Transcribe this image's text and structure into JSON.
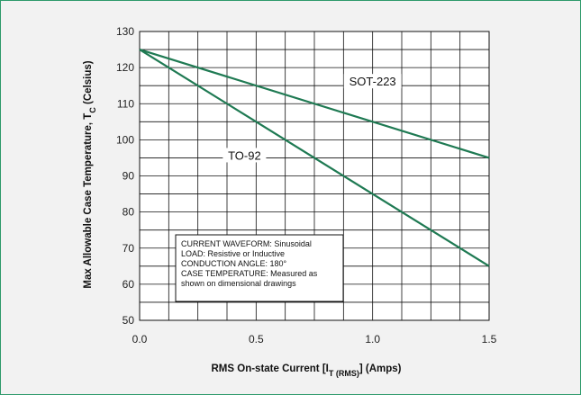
{
  "chart_data": {
    "type": "line",
    "xlabel": "RMS On-state Current [I",
    "xlabel_sub": "T (RMS)",
    "xlabel_tail": "] (Amps)",
    "ylabel": "Max Allowable Case Temperature, T",
    "ylabel_sub": "C",
    "ylabel_tail": " (Celsius)",
    "xlim": [
      0,
      1.5
    ],
    "ylim": [
      50,
      130
    ],
    "x_ticks": [
      "0.0",
      "0.5",
      "1.0",
      "1.5"
    ],
    "y_ticks": [
      "50",
      "60",
      "70",
      "80",
      "90",
      "100",
      "110",
      "120",
      "130"
    ],
    "grid": true,
    "line_color": "#1f7a53",
    "series": [
      {
        "name": "SOT-223",
        "x": [
          0,
          1.5
        ],
        "y": [
          125,
          95
        ]
      },
      {
        "name": "TO-92",
        "x": [
          0,
          1.5
        ],
        "y": [
          125,
          65
        ]
      }
    ],
    "annotation": [
      "CURRENT WAVEFORM: Sinusoidal",
      "LOAD: Resistive or Inductive",
      "CONDUCTION ANGLE: 180°",
      "CASE TEMPERATURE: Measured as",
      "shown on dimensional drawings"
    ]
  }
}
